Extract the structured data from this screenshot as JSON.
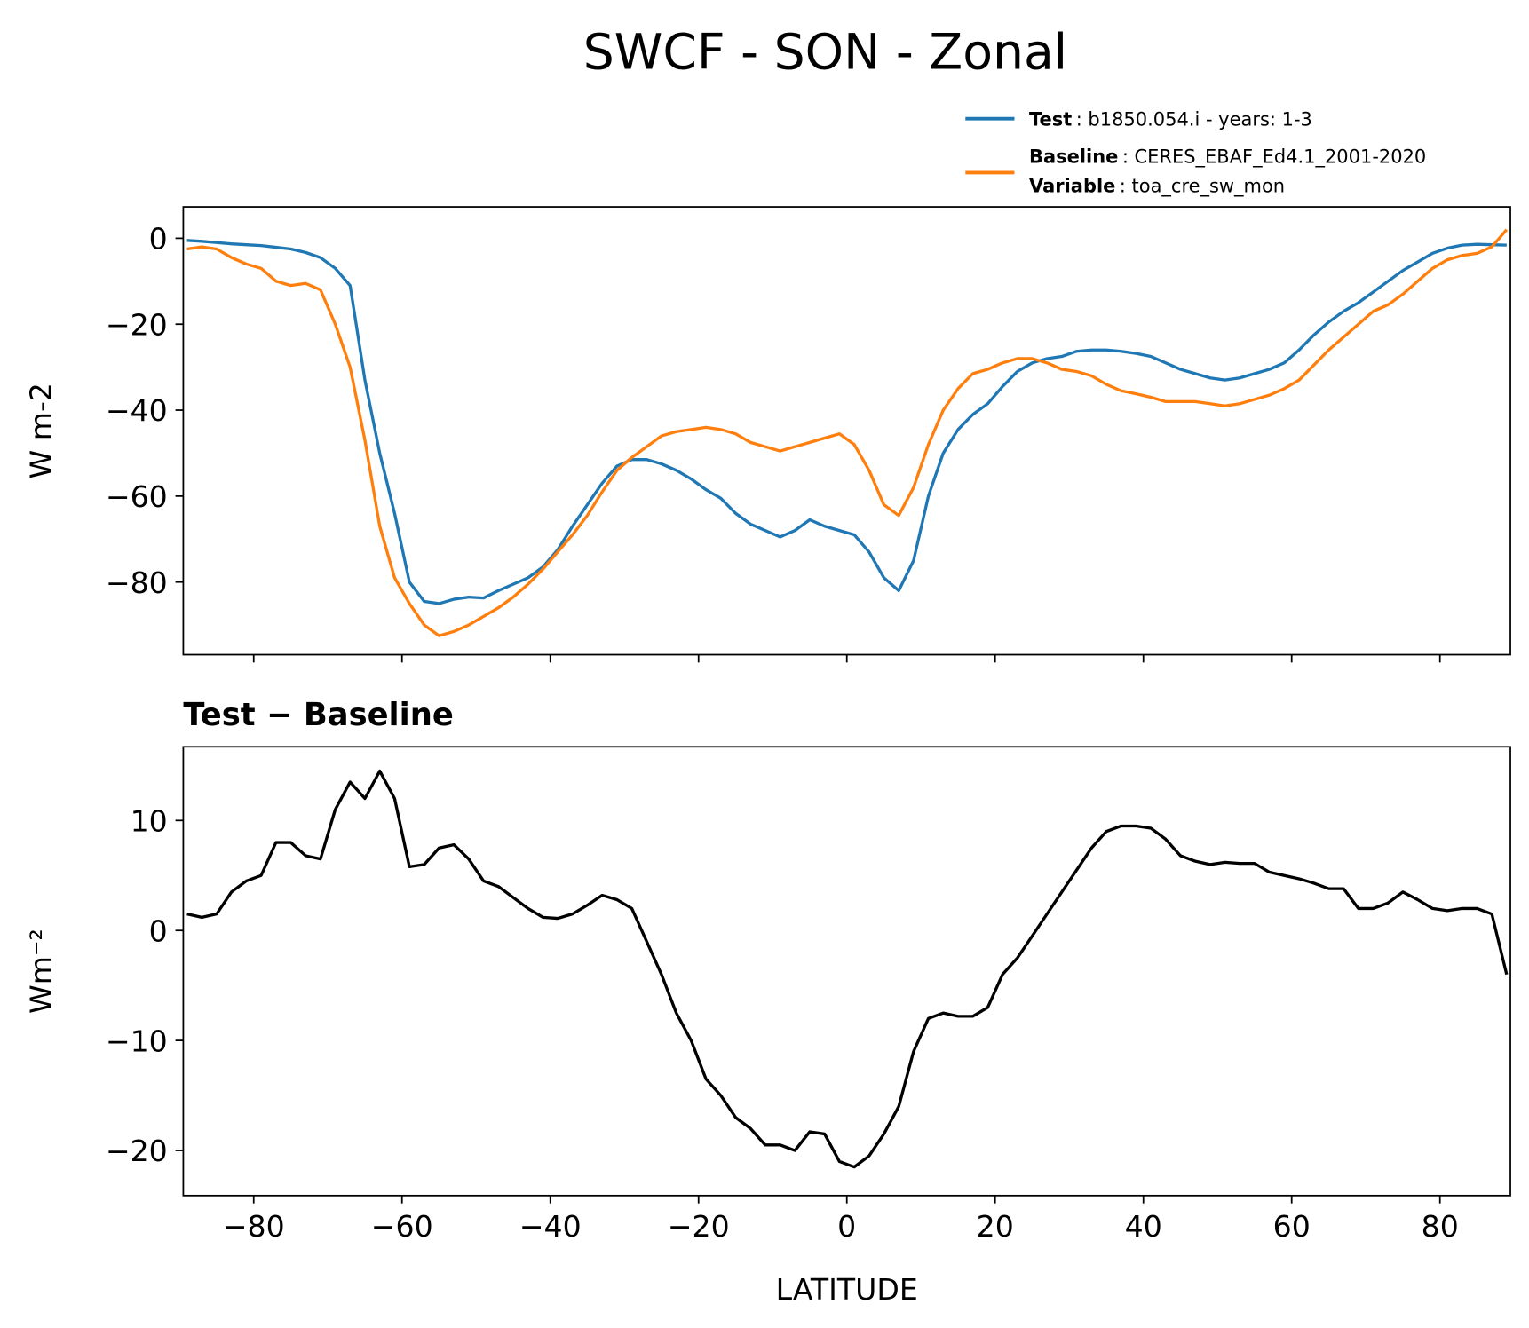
{
  "chart_data": [
    {
      "type": "line",
      "title": "SWCF - SON - Zonal",
      "ylabel": "W m-2",
      "x": [
        -89,
        -87,
        -85,
        -83,
        -81,
        -79,
        -77,
        -75,
        -73,
        -71,
        -69,
        -67,
        -65,
        -63,
        -61,
        -59,
        -57,
        -55,
        -53,
        -51,
        -49,
        -47,
        -45,
        -43,
        -41,
        -39,
        -37,
        -35,
        -33,
        -31,
        -29,
        -27,
        -25,
        -23,
        -21,
        -19,
        -17,
        -15,
        -13,
        -11,
        -9,
        -7,
        -5,
        -3,
        -1,
        1,
        3,
        5,
        7,
        9,
        11,
        13,
        15,
        17,
        19,
        21,
        23,
        25,
        27,
        29,
        31,
        33,
        35,
        37,
        39,
        41,
        43,
        45,
        47,
        49,
        51,
        53,
        55,
        57,
        59,
        61,
        63,
        65,
        67,
        69,
        71,
        73,
        75,
        77,
        79,
        81,
        83,
        85,
        87,
        89
      ],
      "series": [
        {
          "name": "Test",
          "description": ": b1850.054.i - years: 1-3",
          "color": "#1f77b4",
          "values": [
            -0.5,
            -0.7,
            -1,
            -1.3,
            -1.5,
            -1.7,
            -2.1,
            -2.5,
            -3.3,
            -4.5,
            -7,
            -11,
            -33,
            -50,
            -64,
            -80,
            -84.5,
            -85,
            -84,
            -83.5,
            -83.7,
            -82,
            -80.5,
            -79,
            -76.5,
            -72.5,
            -67,
            -62,
            -57,
            -53,
            -51.5,
            -51.5,
            -52.5,
            -54,
            -56,
            -58.5,
            -60.5,
            -64,
            -66.5,
            -68,
            -69.5,
            -68,
            -65.5,
            -67,
            -68,
            -69,
            -73,
            -79,
            -82,
            -75,
            -60,
            -50,
            -44.5,
            -41,
            -38.5,
            -34.5,
            -31,
            -29,
            -28,
            -27.5,
            -26.3,
            -26,
            -26,
            -26.3,
            -26.8,
            -27.5,
            -29,
            -30.5,
            -31.5,
            -32.5,
            -33,
            -32.5,
            -31.5,
            -30.5,
            -29,
            -26,
            -22.5,
            -19.5,
            -17,
            -15,
            -12.5,
            -10,
            -7.5,
            -5.5,
            -3.5,
            -2.3,
            -1.6,
            -1.4,
            -1.5,
            -1.6
          ]
        },
        {
          "name": "Baseline",
          "description": ": CERES_EBAF_Ed4.1_2001-2020",
          "color": "#ff7f0e",
          "values": [
            -2.5,
            -2,
            -2.5,
            -4.5,
            -6,
            -7,
            -10,
            -11,
            -10.5,
            -12,
            -20,
            -30,
            -47,
            -67,
            -79,
            -85,
            -90,
            -92.5,
            -91.5,
            -90,
            -88,
            -86,
            -83.5,
            -80.5,
            -77,
            -73,
            -69,
            -64.5,
            -59,
            -54,
            -51,
            -48.5,
            -46,
            -45,
            -44.5,
            -44,
            -44.5,
            -45.5,
            -47.5,
            -48.5,
            -49.5,
            -48.5,
            -47.5,
            -46.5,
            -45.5,
            -48,
            -54,
            -62,
            -64.5,
            -58,
            -48,
            -40,
            -35,
            -31.5,
            -30.5,
            -29,
            -28,
            -28,
            -29,
            -30.5,
            -31,
            -32,
            -34,
            -35.5,
            -36.2,
            -37,
            -38,
            -38,
            -38,
            -38.5,
            -39,
            -38.5,
            -37.5,
            -36.5,
            -35,
            -33,
            -29.5,
            -26,
            -23,
            -20,
            -17,
            -15.5,
            -13,
            -10,
            -7,
            -5,
            -4,
            -3.5,
            -2,
            2
          ]
        }
      ],
      "legend_note": {
        "name": "Variable",
        "description": ": toa_cre_sw_mon"
      },
      "xlim": [
        -89.5,
        89.5
      ],
      "xticks": [
        -80,
        -60,
        -40,
        -20,
        0,
        20,
        40,
        60,
        80
      ],
      "ylim": [
        -96.9,
        7.3
      ],
      "yticks": [
        {
          "value": -80,
          "label": "−80"
        },
        {
          "value": -60,
          "label": "−60"
        },
        {
          "value": -40,
          "label": "−40"
        },
        {
          "value": -20,
          "label": "−20"
        },
        0
      ]
    },
    {
      "type": "line",
      "title": "Test − Baseline",
      "ylabel": "Wm⁻²",
      "xlabel": "LATITUDE",
      "x": [
        -89,
        -87,
        -85,
        -83,
        -81,
        -79,
        -77,
        -75,
        -73,
        -71,
        -69,
        -67,
        -65,
        -63,
        -61,
        -59,
        -57,
        -55,
        -53,
        -51,
        -49,
        -47,
        -45,
        -43,
        -41,
        -39,
        -37,
        -35,
        -33,
        -31,
        -29,
        -27,
        -25,
        -23,
        -21,
        -19,
        -17,
        -15,
        -13,
        -11,
        -9,
        -7,
        -5,
        -3,
        -1,
        1,
        3,
        5,
        7,
        9,
        11,
        13,
        15,
        17,
        19,
        21,
        23,
        25,
        27,
        29,
        31,
        33,
        35,
        37,
        39,
        41,
        43,
        45,
        47,
        49,
        51,
        53,
        55,
        57,
        59,
        61,
        63,
        65,
        67,
        69,
        71,
        73,
        75,
        77,
        79,
        81,
        83,
        85,
        87,
        89
      ],
      "series": [
        {
          "color": "#000000",
          "values": [
            1.5,
            1.2,
            1.5,
            3.5,
            4.5,
            5,
            8,
            8,
            6.8,
            6.5,
            11,
            13.5,
            12,
            14.5,
            12,
            5.8,
            6,
            7.5,
            7.8,
            6.5,
            4.5,
            4,
            3,
            2,
            1.2,
            1.1,
            1.5,
            2.3,
            3.2,
            2.8,
            2,
            -1,
            -4,
            -7.5,
            -10,
            -13.5,
            -15,
            -17,
            -18,
            -19.5,
            -19.5,
            -20,
            -18.3,
            -18.5,
            -21,
            -21.5,
            -20.5,
            -18.5,
            -16,
            -11,
            -8,
            -7.5,
            -7.8,
            -7.8,
            -7,
            -4,
            -2.5,
            -0.5,
            1.5,
            3.5,
            5.5,
            7.5,
            9,
            9.5,
            9.5,
            9.3,
            8.3,
            6.8,
            6.3,
            6,
            6.2,
            6.1,
            6.1,
            5.3,
            5,
            4.7,
            4.3,
            3.8,
            3.8,
            2,
            2,
            2.5,
            3.5,
            2.8,
            2,
            1.8,
            2,
            2,
            1.5,
            -4
          ]
        }
      ],
      "xlim": [
        -89.5,
        89.5
      ],
      "xticks": [
        {
          "value": -80,
          "label": "−80"
        },
        {
          "value": -60,
          "label": "−60"
        },
        {
          "value": -40,
          "label": "−40"
        },
        {
          "value": -20,
          "label": "−20"
        },
        0,
        20,
        40,
        60,
        80
      ],
      "ylim": [
        -24.1,
        16.7
      ],
      "yticks": [
        {
          "value": -20,
          "label": "−20"
        },
        {
          "value": -10,
          "label": "−10"
        },
        0,
        10
      ]
    }
  ]
}
